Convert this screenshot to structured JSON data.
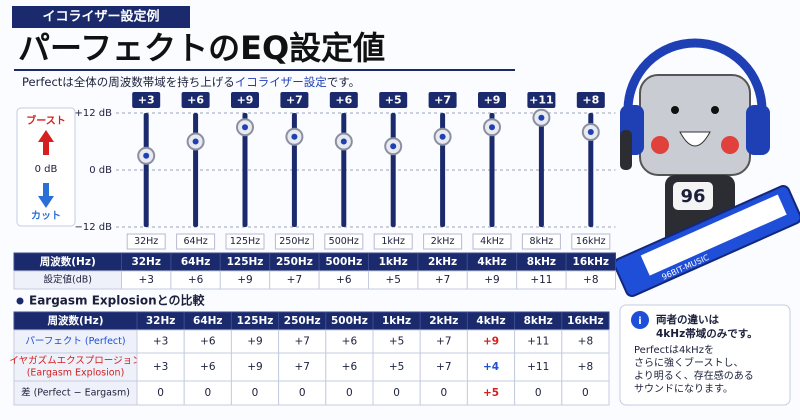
{
  "header": {
    "badge": "イコライザー設定例",
    "title": "パーフェクトのEQ設定値",
    "subtitle": [
      "Perfectは全体の周波数帯域を持ち上げる",
      "イコライザー設定",
      "です。"
    ]
  },
  "legend": {
    "boost": "ブースト",
    "zero": "0 dB",
    "cut": "カット"
  },
  "chart_data": {
    "type": "slider",
    "categories": [
      "32Hz",
      "64Hz",
      "125Hz",
      "250Hz",
      "500Hz",
      "1kHz",
      "2kHz",
      "4kHz",
      "8kHz",
      "16kHz"
    ],
    "values": [
      3,
      6,
      9,
      7,
      6,
      5,
      7,
      9,
      11,
      8
    ],
    "value_labels": [
      "+3",
      "+6",
      "+9",
      "+7",
      "+6",
      "+5",
      "+7",
      "+9",
      "+11",
      "+8"
    ],
    "ylim": [
      -12,
      12
    ],
    "yticks": [
      {
        "value": 12,
        "label": "+12 dB"
      },
      {
        "value": 0,
        "label": "0 dB"
      },
      {
        "value": -12,
        "label": "−12 dB"
      }
    ],
    "color": "#1f3fb5",
    "grid": true
  },
  "settings_table": {
    "rows": [
      [
        "周波数(Hz)",
        "32Hz",
        "64Hz",
        "125Hz",
        "250Hz",
        "500Hz",
        "1kHz",
        "2kHz",
        "4kHz",
        "8kHz",
        "16kHz"
      ],
      [
        "設定値(dB)",
        "+3",
        "+6",
        "+9",
        "+7",
        "+6",
        "+5",
        "+7",
        "+9",
        "+11",
        "+8"
      ]
    ]
  },
  "comparison": {
    "heading": "Eargasm Explosionとの比較",
    "highlight_column": 8,
    "rows": [
      [
        "周波数(Hz)",
        "32Hz",
        "64Hz",
        "125Hz",
        "250Hz",
        "500Hz",
        "1kHz",
        "2kHz",
        "4kHz",
        "8kHz",
        "16kHz"
      ],
      [
        "パーフェクト (Perfect)",
        "+3",
        "+6",
        "+9",
        "+7",
        "+6",
        "+5",
        "+7",
        "+9",
        "+11",
        "+8"
      ],
      [
        [
          "イヤガズムエクスプロージョン",
          "(Eargasm Explosion)"
        ],
        "+3",
        "+6",
        "+9",
        "+7",
        "+6",
        "+5",
        "+7",
        "+4",
        "+11",
        "+8"
      ],
      [
        "差 (Perfect − Eargasm)",
        "0",
        "0",
        "0",
        "0",
        "0",
        "0",
        "0",
        "+5",
        "0",
        "0"
      ]
    ]
  },
  "note": {
    "icon": "i",
    "title": [
      "両者の違いは",
      "4kHz帯域のみです。"
    ],
    "body": [
      "Perfectは4kHzを",
      "さらに強くブーストし、",
      "より明るく、存在感のある",
      "サウンドになります。"
    ]
  },
  "robot": {
    "display": "96",
    "keyboard": "96BIT-MUSIC"
  }
}
